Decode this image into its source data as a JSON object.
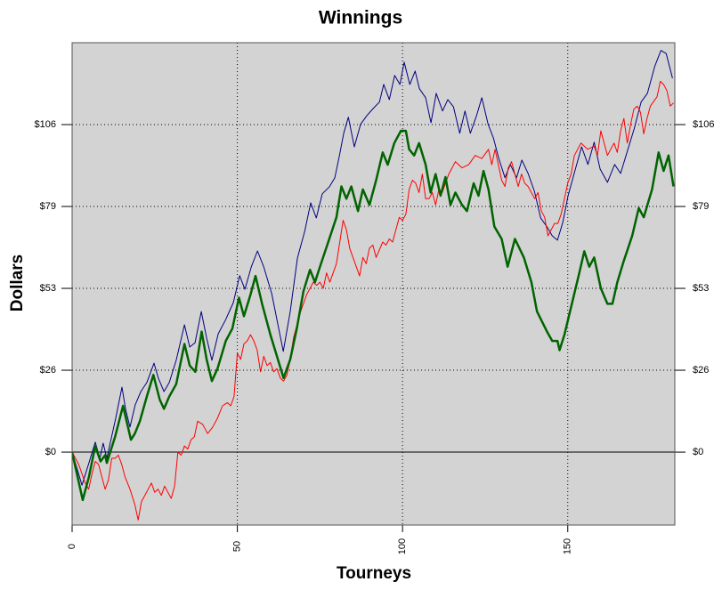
{
  "chart_data": {
    "type": "line",
    "title": "Winnings",
    "x_label": "Tourneys",
    "y_label": "Dollars",
    "xlim": [
      0,
      182.4
    ],
    "xticks": [
      0,
      50,
      100,
      150
    ],
    "ylim": [
      -23.6,
      132.5
    ],
    "yticks": [
      {
        "value": 0,
        "label": "$0"
      },
      {
        "value": 26.5,
        "label": "$26"
      },
      {
        "value": 53,
        "label": "$53"
      },
      {
        "value": 79.5,
        "label": "$79"
      },
      {
        "value": 106,
        "label": "$106"
      }
    ],
    "grid": true,
    "background": "#d3d3d3",
    "series": [
      {
        "color": "#000080",
        "line_width": 1,
        "x": [
          0,
          3.0,
          5.1,
          7.0,
          8.4,
          9.4,
          10.5,
          13.2,
          15.1,
          16.2,
          17.5,
          19.1,
          20.8,
          22.6,
          24.8,
          26.1,
          27.8,
          29.4,
          31.5,
          34.0,
          35.6,
          37.2,
          39.1,
          40.7,
          42.3,
          44.2,
          46.4,
          48.8,
          50.7,
          52.3,
          54.2,
          56.1,
          58.0,
          60.4,
          63.9,
          66.0,
          68.2,
          70.4,
          72.2,
          73.9,
          75.7,
          77.9,
          79.5,
          80.9,
          82.2,
          83.6,
          85.4,
          87.3,
          89.2,
          91.1,
          93.0,
          94.3,
          96.0,
          97.6,
          99.2,
          100.5,
          102.2,
          103.8,
          105.1,
          107.0,
          108.6,
          110.2,
          112.1,
          113.7,
          115.4,
          117.3,
          118.9,
          120.5,
          122.4,
          124.0,
          125.9,
          127.5,
          129.1,
          131.0,
          132.6,
          134.5,
          136.1,
          138.0,
          139.9,
          141.8,
          143.7,
          145.3,
          146.9,
          148.5,
          150.1,
          152.3,
          154.2,
          156.1,
          158.0,
          159.8,
          162.0,
          164.2,
          166.0,
          168.2,
          170.1,
          172.2,
          174.1,
          176.3,
          178.2,
          179.8,
          181.7
        ],
        "values": [
          0,
          -10.7,
          -3.5,
          3.2,
          -2.0,
          2.9,
          -2.0,
          11.0,
          21.0,
          13.8,
          8.1,
          15.3,
          19.6,
          22.5,
          28.8,
          23.9,
          19.6,
          22.5,
          29.7,
          41.2,
          34.0,
          35.4,
          45.5,
          36.9,
          29.7,
          38.3,
          42.7,
          48.4,
          57.1,
          52.7,
          59.9,
          65.1,
          59.9,
          51.3,
          32.6,
          45.5,
          62.8,
          71.5,
          80.7,
          75.8,
          83.6,
          85.9,
          88.8,
          96.0,
          103.2,
          108.4,
          98.8,
          106.1,
          108.9,
          111.2,
          113.3,
          119.0,
          114.1,
          121.9,
          119.0,
          126.2,
          119.0,
          123.3,
          117.6,
          114.7,
          106.6,
          116.1,
          110.4,
          114.1,
          111.8,
          103.2,
          110.4,
          103.2,
          108.9,
          114.7,
          106.1,
          101.7,
          95.1,
          88.8,
          93.1,
          88.8,
          94.5,
          90.2,
          84.4,
          75.8,
          72.9,
          70.0,
          68.6,
          74.4,
          83.0,
          91.6,
          98.8,
          93.1,
          100.3,
          91.6,
          87.3,
          93.1,
          90.2,
          98.0,
          104.6,
          113.3,
          116.1,
          124.8,
          130.0,
          129.0,
          121.0
        ]
      },
      {
        "color": "#ff0000",
        "line_width": 1,
        "x": [
          0,
          2,
          4,
          5,
          6,
          7,
          8,
          9,
          10,
          11,
          12,
          13,
          14,
          15,
          16,
          17.5,
          19,
          20,
          21,
          22,
          23,
          24,
          25,
          26,
          27,
          28,
          29,
          30,
          31,
          32,
          33,
          34,
          35,
          36,
          37,
          38,
          39.5,
          41,
          42.5,
          44,
          45.5,
          47,
          48,
          49,
          50,
          51,
          52,
          53,
          54,
          55,
          56,
          57,
          58,
          59,
          60,
          61,
          62,
          63,
          64,
          65,
          66,
          67,
          69,
          71,
          73,
          74,
          75,
          76,
          77,
          78,
          80,
          82,
          83,
          84,
          86,
          87,
          88,
          89,
          90,
          91,
          92,
          94,
          95,
          96,
          97,
          98,
          99,
          100,
          101,
          102,
          103,
          104,
          105,
          106,
          107,
          108,
          109,
          110,
          111,
          112,
          114,
          116,
          118,
          120,
          122,
          124,
          126,
          127,
          128,
          130,
          131,
          132,
          133,
          135,
          136,
          137,
          138,
          140,
          141,
          142,
          143,
          144,
          146,
          147,
          148,
          150,
          151,
          152,
          154,
          156,
          158,
          159,
          160,
          161,
          162,
          164,
          165,
          166,
          167,
          168,
          169,
          170,
          171,
          172,
          173,
          174,
          175,
          177,
          178,
          179,
          180,
          181,
          182
        ],
        "values": [
          0,
          -4,
          -10,
          -12,
          -7,
          -3,
          -4,
          -8,
          -12,
          -9,
          -2,
          -2,
          -1,
          -4,
          -8,
          -12,
          -17,
          -22,
          -16,
          -14,
          -12,
          -10,
          -13,
          -12,
          -14,
          -11,
          -13,
          -15,
          -11,
          0,
          -1,
          2,
          1,
          4,
          5,
          10,
          9,
          6,
          8,
          11,
          15,
          16,
          15,
          18,
          32,
          30,
          35,
          36,
          38,
          36,
          33,
          26,
          31,
          28,
          29,
          26,
          27,
          24,
          23,
          25,
          30,
          37,
          45,
          51,
          55,
          54,
          55,
          53,
          58,
          55,
          61,
          75,
          72,
          66,
          60,
          57,
          63,
          61,
          66,
          67,
          63,
          68,
          67,
          69,
          68,
          72,
          76,
          75,
          77,
          85,
          88,
          87,
          84,
          90,
          82,
          82,
          84,
          80,
          85,
          84,
          90,
          94,
          92,
          93,
          96,
          95,
          98,
          93,
          98,
          88,
          86,
          92,
          94,
          86,
          90,
          87,
          86,
          82,
          84,
          78,
          76,
          70,
          74,
          74,
          77,
          87,
          90,
          96,
          100,
          98,
          99,
          96,
          104,
          100,
          96,
          100,
          97,
          104,
          108,
          100,
          106,
          111,
          112,
          110,
          103,
          108,
          112,
          115,
          120,
          119,
          117,
          112,
          113
        ]
      },
      {
        "color": "#006400",
        "line_width": 2.5,
        "x": [
          0,
          3.2,
          5.1,
          7,
          8.6,
          10,
          10.5,
          13,
          15.4,
          16.5,
          17.8,
          19,
          20.5,
          22.6,
          24.6,
          26.5,
          27.8,
          29.4,
          31.5,
          34,
          35.6,
          37.3,
          39.2,
          40.7,
          42.3,
          44,
          46.5,
          48.5,
          50.5,
          52,
          54,
          55.5,
          57.5,
          60,
          64,
          66,
          68,
          70,
          72,
          73.5,
          75,
          77.5,
          80,
          81.5,
          83,
          84.5,
          86.5,
          88,
          90,
          92,
          94,
          95.5,
          97.5,
          99.5,
          101,
          102,
          103.5,
          105,
          107,
          108.5,
          110,
          111.5,
          113,
          114.5,
          116,
          118,
          119.5,
          121.5,
          123,
          124.5,
          126,
          127.8,
          130,
          131.8,
          134,
          136.7,
          139,
          140.7,
          143.7,
          145.3,
          146.9,
          147.5,
          149,
          151,
          153.5,
          155,
          156.5,
          158,
          160,
          162,
          163.5,
          165,
          167,
          169.5,
          171.5,
          173,
          175.5,
          177.5,
          179,
          180.5,
          182
        ],
        "values": [
          0,
          -15.5,
          -8,
          2,
          -3,
          -1,
          -3.5,
          5,
          15,
          10,
          4,
          6,
          10,
          18,
          25,
          17,
          14,
          18,
          22,
          35,
          28,
          26,
          39,
          30,
          23,
          27,
          36,
          40,
          50,
          44,
          51,
          57,
          48,
          38,
          24,
          30,
          40,
          52,
          59,
          55,
          60,
          68,
          76,
          86,
          82,
          86,
          78,
          85,
          80,
          88,
          97,
          93,
          100,
          104,
          104,
          98,
          96,
          100,
          93,
          84,
          90,
          83,
          89,
          80,
          84,
          80,
          78,
          87,
          83,
          91,
          85,
          73,
          69,
          60,
          69,
          63,
          55,
          45.5,
          39,
          36,
          36,
          33,
          38,
          47,
          58,
          65,
          60,
          63,
          53,
          48,
          48,
          55,
          62,
          70,
          79,
          76,
          85,
          97,
          91,
          96,
          86
        ]
      }
    ]
  }
}
